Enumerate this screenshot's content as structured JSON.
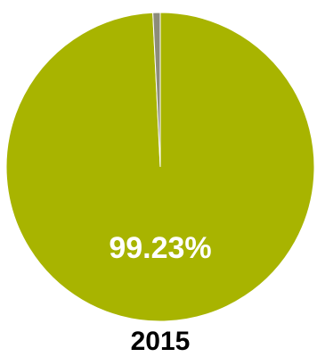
{
  "chart_data": {
    "type": "pie",
    "title": "2015",
    "slices": [
      {
        "value": 99.23,
        "label": "99.23%",
        "color": "#a8b400"
      },
      {
        "value": 0.77,
        "label": "",
        "color": "#8c8c7a"
      }
    ],
    "legend": "none"
  }
}
